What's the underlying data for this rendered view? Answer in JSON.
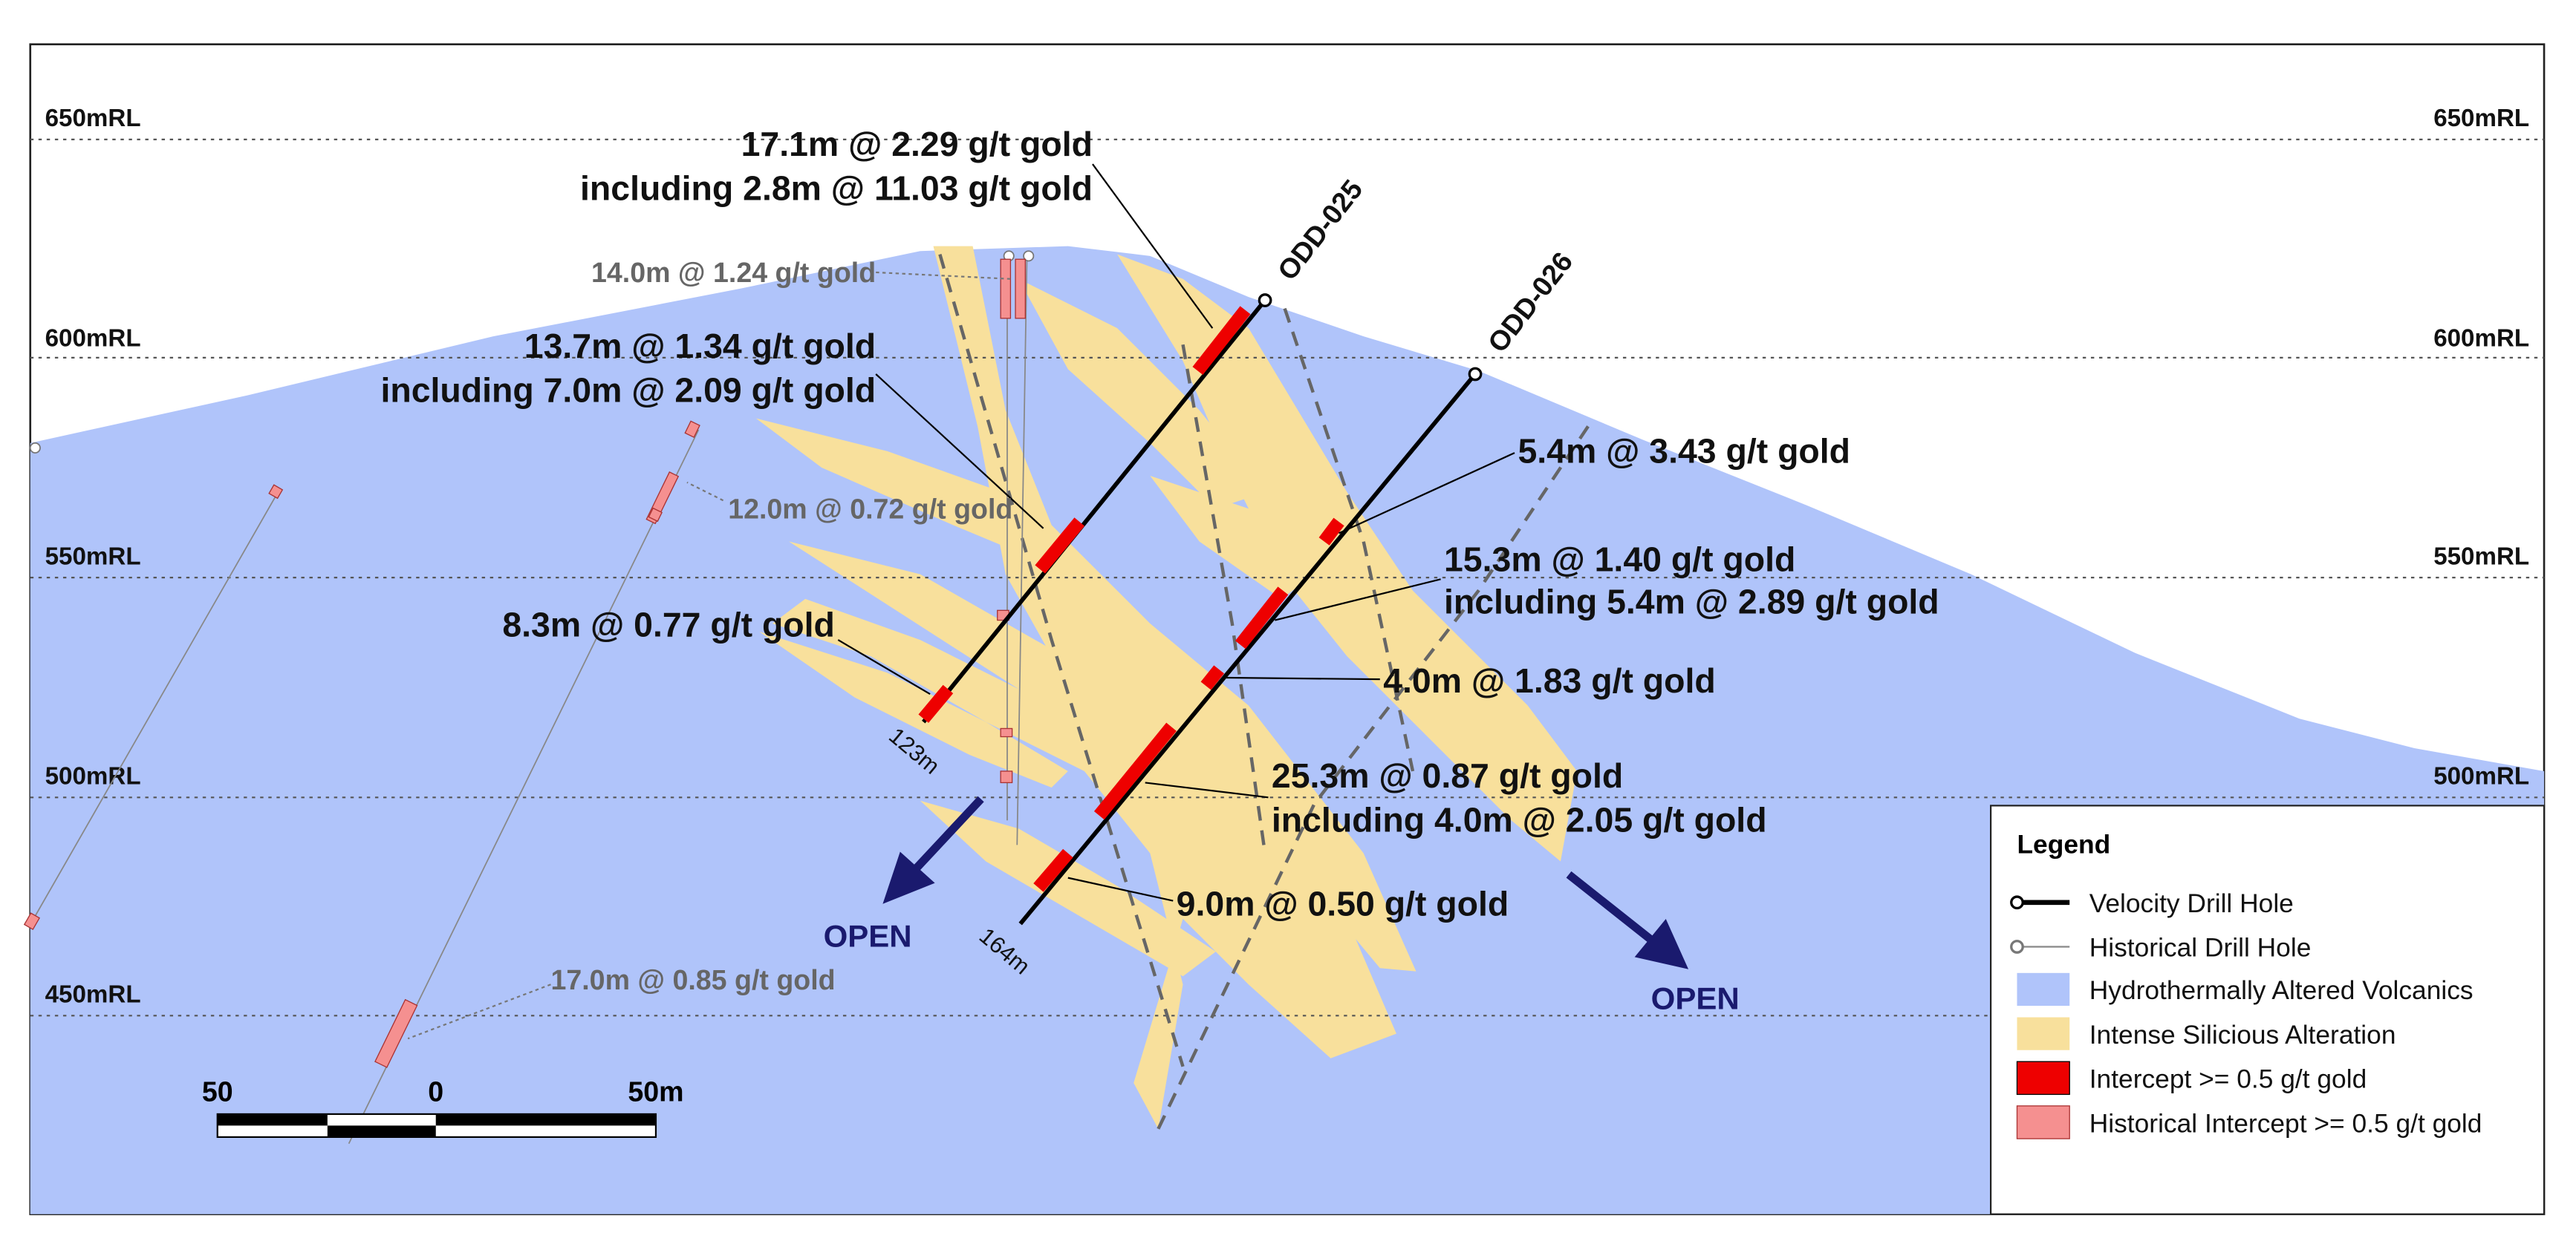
{
  "levels": [
    "650mRL",
    "600mRL",
    "550mRL",
    "500mRL",
    "450mRL"
  ],
  "drill_holes": [
    "ODD-025",
    "ODD-026"
  ],
  "hole_depths": [
    "123m",
    "164m"
  ],
  "intercepts": [
    {
      "lines": [
        "17.1m @ 2.29 g/t gold",
        "including 2.8m @ 11.03 g/t gold"
      ]
    },
    {
      "lines": [
        "13.7m @ 1.34 g/t gold",
        "including 7.0m @ 2.09 g/t gold"
      ]
    },
    {
      "lines": [
        "8.3m @ 0.77 g/t gold"
      ]
    },
    {
      "lines": [
        "5.4m @ 3.43 g/t gold"
      ]
    },
    {
      "lines": [
        "15.3m @ 1.40 g/t gold",
        "including 5.4m @ 2.89 g/t gold"
      ]
    },
    {
      "lines": [
        "4.0m @ 1.83 g/t gold"
      ]
    },
    {
      "lines": [
        "25.3m @ 0.87 g/t gold",
        "including 4.0m @ 2.05 g/t gold"
      ]
    },
    {
      "lines": [
        "9.0m @ 0.50 g/t gold"
      ]
    }
  ],
  "historical_intercepts": [
    "14.0m @ 1.24 g/t gold",
    "12.0m @ 0.72 g/t gold",
    "17.0m @ 0.85 g/t gold"
  ],
  "open_labels": [
    "OPEN",
    "OPEN"
  ],
  "scale_bar": [
    "50",
    "0",
    "50m"
  ],
  "legend": {
    "title": "Legend",
    "items": [
      "Velocity Drill Hole",
      "Historical Drill Hole",
      "Hydrothermally Altered Volcanics",
      "Intense Silicious Alteration",
      "Intercept >= 0.5 g/t gold",
      "Historical Intercept >= 0.5 g/t gold"
    ]
  }
}
